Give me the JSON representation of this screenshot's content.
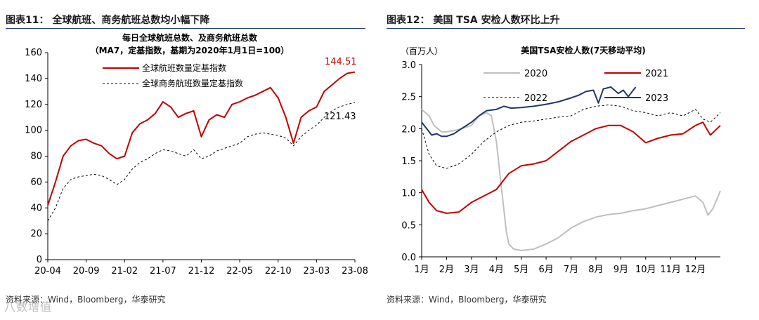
{
  "left_panel": {
    "title": "图表11： 全球航班、商务航班总数均小幅下降",
    "source": "资料来源：Wind，Bloomberg，华泰研究"
  },
  "right_panel": {
    "title": "图表12： 美国 TSA 安检人数环比上升",
    "source": "资料来源：Wind，Bloomberg，华泰研究"
  },
  "watermark": "八数增值",
  "chart_data": [
    {
      "type": "line",
      "title": "每日全球航班总数、及商务航班总数",
      "subtitle": "（MA7，定基指数，基期为2020年1月1日=100）",
      "xlabel": "",
      "ylabel": "",
      "ylim": [
        0,
        160
      ],
      "yticks": [
        0,
        20,
        40,
        60,
        80,
        100,
        120,
        140,
        160
      ],
      "xticks": [
        "20-04",
        "20-09",
        "21-02",
        "21-07",
        "21-12",
        "22-05",
        "22-10",
        "23-03",
        "23-08"
      ],
      "x": [
        "2020-04",
        "2020-05",
        "2020-06",
        "2020-07",
        "2020-08",
        "2020-09",
        "2020-10",
        "2020-11",
        "2020-12",
        "2021-01",
        "2021-02",
        "2021-03",
        "2021-04",
        "2021-05",
        "2021-06",
        "2021-07",
        "2021-08",
        "2021-09",
        "2021-10",
        "2021-11",
        "2021-12",
        "2022-01",
        "2022-02",
        "2022-03",
        "2022-04",
        "2022-05",
        "2022-06",
        "2022-07",
        "2022-08",
        "2022-09",
        "2022-10",
        "2022-11",
        "2022-12",
        "2023-01",
        "2023-02",
        "2023-03",
        "2023-04",
        "2023-05",
        "2023-06",
        "2023-07",
        "2023-08"
      ],
      "series": [
        {
          "name": "全球航班数量定基指数",
          "color": "#c00000",
          "style": "solid",
          "values": [
            42,
            60,
            80,
            88,
            92,
            93,
            90,
            88,
            82,
            78,
            80,
            98,
            105,
            108,
            113,
            122,
            118,
            110,
            113,
            115,
            95,
            108,
            112,
            110,
            120,
            122,
            125,
            127,
            130,
            133,
            125,
            110,
            90,
            110,
            115,
            118,
            130,
            135,
            140,
            144,
            145
          ],
          "end_label": "144.51"
        },
        {
          "name": "全球商务航班数量定基指数",
          "color": "#000000",
          "style": "dashed",
          "values": [
            30,
            40,
            55,
            62,
            64,
            65,
            66,
            65,
            62,
            58,
            62,
            70,
            75,
            78,
            82,
            85,
            84,
            82,
            80,
            85,
            78,
            80,
            84,
            86,
            88,
            90,
            95,
            97,
            98,
            97,
            96,
            94,
            88,
            95,
            100,
            104,
            110,
            115,
            118,
            120,
            121.43
          ],
          "end_label": "121.43"
        }
      ]
    },
    {
      "type": "line",
      "title": "美国TSA安检人数(7天移动平均)",
      "unit_label": "（百万人）",
      "xlabel": "",
      "ylabel": "",
      "ylim": [
        0,
        3.0
      ],
      "yticks": [
        0.0,
        0.5,
        1.0,
        1.5,
        2.0,
        2.5,
        3.0
      ],
      "yticklabels": [
        "0.0",
        "0.5",
        "1.0",
        "1.5",
        "2.0",
        "2.5",
        "3.0"
      ],
      "xticks": [
        "1月",
        "2月",
        "3月",
        "4月",
        "5月",
        "6月",
        "7月",
        "8月",
        "9月",
        "10月",
        "11月",
        "12月"
      ],
      "x_months": [
        0,
        0.5,
        1,
        1.5,
        2,
        2.5,
        3,
        3.5,
        4,
        4.5,
        5,
        5.5,
        6,
        6.5,
        7,
        7.5,
        8,
        8.5,
        9,
        9.5,
        10,
        10.5,
        11,
        11.5,
        12
      ],
      "series": [
        {
          "name": "2020",
          "color": "#bfbfbf",
          "style": "solid",
          "x": [
            0,
            0.3,
            0.5,
            0.8,
            1,
            1.3,
            1.6,
            2,
            2.3,
            2.6,
            2.8,
            3,
            3.2,
            3.4,
            3.5,
            3.7,
            4,
            4.5,
            5,
            5.5,
            6,
            6.5,
            7,
            7.5,
            8,
            8.5,
            9,
            9.5,
            10,
            10.5,
            11,
            11.3,
            11.5,
            11.7,
            12
          ],
          "values": [
            2.3,
            2.2,
            2.05,
            1.95,
            1.95,
            1.97,
            2.0,
            2.05,
            2.2,
            2.25,
            2.2,
            1.8,
            1.1,
            0.4,
            0.2,
            0.12,
            0.1,
            0.12,
            0.2,
            0.3,
            0.45,
            0.55,
            0.62,
            0.66,
            0.68,
            0.72,
            0.75,
            0.8,
            0.85,
            0.9,
            0.95,
            0.85,
            0.65,
            0.75,
            1.03
          ]
        },
        {
          "name": "2021",
          "color": "#c00000",
          "style": "solid",
          "x": [
            0,
            0.3,
            0.6,
            1,
            1.5,
            2,
            2.5,
            3,
            3.5,
            4,
            4.5,
            5,
            5.5,
            6,
            6.5,
            7,
            7.5,
            8,
            8.5,
            9,
            9.5,
            10,
            10.5,
            11,
            11.3,
            11.6,
            12
          ],
          "values": [
            1.05,
            0.85,
            0.72,
            0.68,
            0.7,
            0.85,
            0.95,
            1.05,
            1.3,
            1.42,
            1.45,
            1.5,
            1.65,
            1.8,
            1.9,
            2.0,
            2.05,
            2.05,
            1.95,
            1.78,
            1.85,
            1.9,
            1.92,
            2.05,
            2.1,
            1.9,
            2.05
          ]
        },
        {
          "name": "2022",
          "color": "#000000",
          "style": "dashed",
          "x": [
            0,
            0.3,
            0.6,
            1,
            1.5,
            2,
            2.5,
            3,
            3.5,
            4,
            4.5,
            5,
            5.5,
            6,
            6.5,
            7,
            7.5,
            8,
            8.5,
            9,
            9.5,
            10,
            10.5,
            11,
            11.3,
            11.6,
            12
          ],
          "values": [
            2.0,
            1.6,
            1.42,
            1.38,
            1.45,
            1.6,
            1.8,
            1.95,
            2.05,
            2.1,
            2.12,
            2.15,
            2.18,
            2.2,
            2.3,
            2.35,
            2.37,
            2.35,
            2.28,
            2.25,
            2.2,
            2.25,
            2.2,
            2.3,
            2.15,
            2.1,
            2.25
          ]
        },
        {
          "name": "2023",
          "color": "#1f3864",
          "style": "solid",
          "x": [
            0,
            0.2,
            0.4,
            0.6,
            0.8,
            1,
            1.3,
            1.6,
            2,
            2.3,
            2.6,
            3,
            3.3,
            3.6,
            4,
            4.5,
            5,
            5.5,
            6,
            6.3,
            6.6,
            6.9,
            7.1,
            7.3,
            7.6,
            7.9,
            8.1,
            8.3,
            8.6
          ],
          "values": [
            2.1,
            2.0,
            1.9,
            1.92,
            1.88,
            1.88,
            1.92,
            2.0,
            2.1,
            2.2,
            2.28,
            2.3,
            2.35,
            2.32,
            2.33,
            2.35,
            2.38,
            2.42,
            2.48,
            2.52,
            2.58,
            2.6,
            2.4,
            2.62,
            2.65,
            2.55,
            2.6,
            2.5,
            2.65
          ]
        }
      ]
    }
  ]
}
